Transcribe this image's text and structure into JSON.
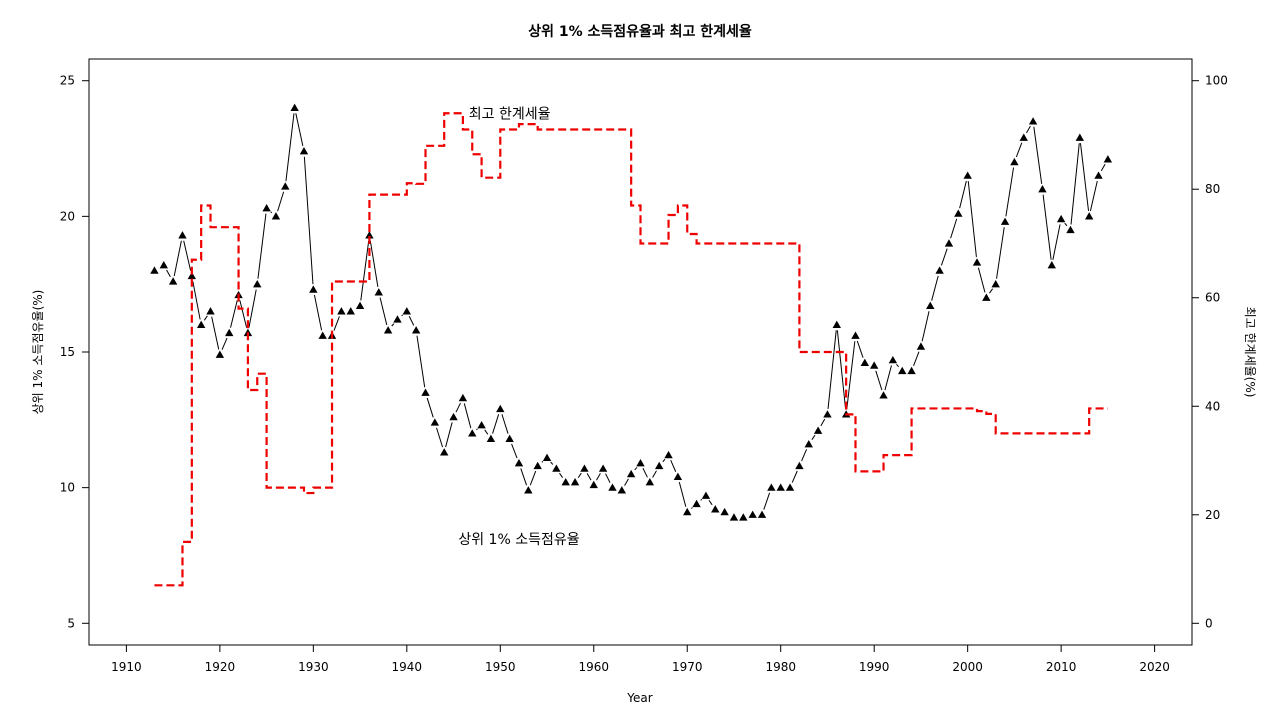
{
  "chart_data": {
    "type": "line",
    "title": "상위 1% 소득점유율과 최고 한계세율",
    "xlabel": "Year",
    "ylabel_left": "상위 1% 소득점유율(%)",
    "ylabel_right": "최고 한계세율(%)",
    "xlim": [
      1906,
      2024
    ],
    "ylim_left": [
      4.2,
      25.8
    ],
    "ylim_right": [
      -4,
      104
    ],
    "x_ticks": [
      1910,
      1920,
      1930,
      1940,
      1950,
      1960,
      1970,
      1980,
      1990,
      2000,
      2010,
      2020
    ],
    "y_ticks_left": [
      5,
      10,
      15,
      20,
      25
    ],
    "y_ticks_right": [
      0,
      20,
      40,
      60,
      80,
      100
    ],
    "grid": false,
    "annotations": [
      {
        "text": "최고 한계세율",
        "x": 1951,
        "y_right": 94
      },
      {
        "text": "상위 1% 소득점유율",
        "x": 1952,
        "y_left": 8.1
      }
    ],
    "series": [
      {
        "axis": "left",
        "style": "solid-triangles",
        "color": "#000000",
        "x": [
          1913,
          1914,
          1915,
          1916,
          1917,
          1918,
          1919,
          1920,
          1921,
          1922,
          1923,
          1924,
          1925,
          1926,
          1927,
          1928,
          1929,
          1930,
          1931,
          1932,
          1933,
          1934,
          1935,
          1936,
          1937,
          1938,
          1939,
          1940,
          1941,
          1942,
          1943,
          1944,
          1945,
          1946,
          1947,
          1948,
          1949,
          1950,
          1951,
          1952,
          1953,
          1954,
          1955,
          1956,
          1957,
          1958,
          1959,
          1960,
          1961,
          1962,
          1963,
          1964,
          1965,
          1966,
          1967,
          1968,
          1969,
          1970,
          1971,
          1972,
          1973,
          1974,
          1975,
          1976,
          1977,
          1978,
          1979,
          1980,
          1981,
          1982,
          1983,
          1984,
          1985,
          1986,
          1987,
          1988,
          1989,
          1990,
          1991,
          1992,
          1993,
          1994,
          1995,
          1996,
          1997,
          1998,
          1999,
          2000,
          2001,
          2002,
          2003,
          2004,
          2005,
          2006,
          2007,
          2008,
          2009,
          2010,
          2011,
          2012,
          2013,
          2014,
          2015
        ],
        "values": [
          18.0,
          18.2,
          17.6,
          19.3,
          17.8,
          16.0,
          16.5,
          14.9,
          15.7,
          17.1,
          15.7,
          17.5,
          20.3,
          20.0,
          21.1,
          24.0,
          22.4,
          17.3,
          15.6,
          15.6,
          16.5,
          16.5,
          16.7,
          19.3,
          17.2,
          15.8,
          16.2,
          16.5,
          15.8,
          13.5,
          12.4,
          11.3,
          12.6,
          13.3,
          12.0,
          12.3,
          11.8,
          12.9,
          11.8,
          10.9,
          9.9,
          10.8,
          11.1,
          10.7,
          10.2,
          10.2,
          10.7,
          10.1,
          10.7,
          10.0,
          9.9,
          10.5,
          10.9,
          10.2,
          10.8,
          11.2,
          10.4,
          9.1,
          9.4,
          9.7,
          9.2,
          9.1,
          8.9,
          8.9,
          9.0,
          9.0,
          10.0,
          10.0,
          10.0,
          10.8,
          11.6,
          12.1,
          12.7,
          16.0,
          12.7,
          15.6,
          14.6,
          14.5,
          13.4,
          14.7,
          14.3,
          14.3,
          15.2,
          16.7,
          18.0,
          19.0,
          20.1,
          21.5,
          18.3,
          17.0,
          17.5,
          19.8,
          22.0,
          22.9,
          23.5,
          21.0,
          18.2,
          19.9,
          19.5,
          22.9,
          20.0,
          21.5,
          22.1
        ]
      },
      {
        "axis": "right",
        "style": "dashed-step",
        "color": "#ee0000",
        "x": [
          1913,
          1914,
          1915,
          1916,
          1917,
          1918,
          1919,
          1920,
          1921,
          1922,
          1923,
          1924,
          1925,
          1926,
          1927,
          1928,
          1929,
          1930,
          1931,
          1932,
          1933,
          1934,
          1935,
          1936,
          1937,
          1938,
          1939,
          1940,
          1941,
          1942,
          1943,
          1944,
          1945,
          1946,
          1947,
          1948,
          1949,
          1950,
          1951,
          1952,
          1953,
          1954,
          1955,
          1956,
          1957,
          1958,
          1959,
          1960,
          1961,
          1962,
          1963,
          1964,
          1965,
          1966,
          1967,
          1968,
          1969,
          1970,
          1971,
          1972,
          1973,
          1974,
          1975,
          1976,
          1977,
          1978,
          1979,
          1980,
          1981,
          1982,
          1983,
          1984,
          1985,
          1986,
          1987,
          1988,
          1989,
          1990,
          1991,
          1992,
          1993,
          1994,
          1995,
          1996,
          1997,
          1998,
          1999,
          2000,
          2001,
          2002,
          2003,
          2004,
          2005,
          2006,
          2007,
          2008,
          2009,
          2010,
          2011,
          2012,
          2013,
          2014,
          2015
        ],
        "values": [
          7,
          7,
          7,
          15,
          67,
          77,
          73,
          73,
          73,
          58,
          43,
          46,
          25,
          25,
          25,
          25,
          24,
          25,
          25,
          63,
          63,
          63,
          63,
          79,
          79,
          79,
          79,
          81.1,
          81,
          88,
          88,
          94,
          94,
          91,
          86.45,
          82.13,
          82.13,
          91,
          91,
          92,
          92,
          91,
          91,
          91,
          91,
          91,
          91,
          91,
          91,
          91,
          91,
          77,
          70,
          70,
          70,
          75.25,
          77,
          71.75,
          70,
          70,
          70,
          70,
          70,
          70,
          70,
          70,
          70,
          70,
          70,
          50,
          50,
          50,
          50,
          50,
          38.5,
          28,
          28,
          28,
          31,
          31,
          31,
          39.6,
          39.6,
          39.6,
          39.6,
          39.6,
          39.6,
          39.6,
          39.1,
          38.6,
          35,
          35,
          35,
          35,
          35,
          35,
          35,
          35,
          35,
          35,
          39.6,
          39.6,
          39.6
        ]
      }
    ]
  }
}
